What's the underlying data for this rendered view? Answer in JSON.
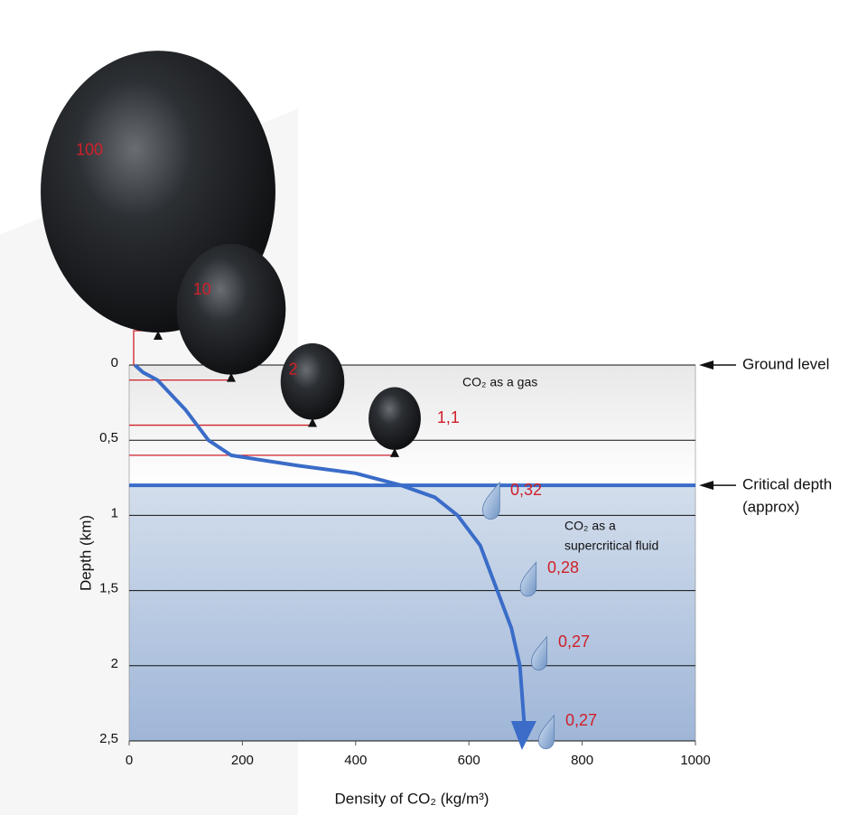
{
  "chart_data": {
    "type": "line",
    "x_label": "Density of CO₂ (kg/m³)",
    "y_label": "Depth (km)",
    "xlim": [
      0,
      1000
    ],
    "ylim": [
      0,
      2.5
    ],
    "xticks": [
      0,
      200,
      400,
      600,
      800,
      1000
    ],
    "yticks": [
      0,
      {
        "value": 0.5,
        "label": "0,5"
      },
      1,
      {
        "value": 1.5,
        "label": "1,5"
      },
      2,
      {
        "value": 2.5,
        "label": "2,5"
      }
    ],
    "grid": true,
    "x": [
      10,
      25,
      50,
      100,
      140,
      180,
      230,
      300,
      400,
      480,
      540,
      580,
      620,
      650,
      675,
      690,
      700
    ],
    "series": [
      {
        "color": "#3a6cc8",
        "values": [
          0,
          0.05,
          0.1,
          0.3,
          0.5,
          0.6,
          0.63,
          0.67,
          0.72,
          0.8,
          0.88,
          1.0,
          1.2,
          1.5,
          1.75,
          2.0,
          2.5
        ]
      }
    ],
    "critical_depth": 0.8,
    "balloons": {
      "values": [
        100,
        10,
        2,
        1.1
      ],
      "value_labels": [
        "100",
        "10",
        "2",
        "1,1"
      ],
      "depths": [
        0,
        0.1,
        0.4,
        0.6
      ]
    },
    "droplets": {
      "values": [
        0.32,
        0.28,
        0.27,
        0.27
      ],
      "value_labels": [
        "0,32",
        "0,28",
        "0,27",
        "0,27"
      ]
    },
    "annotations": {
      "gas": "CO₂ as a gas",
      "fluid": [
        "CO₂ as a",
        "supercritical fluid"
      ],
      "ground": "Ground level",
      "critical": [
        "Critical depth",
        "(approx)"
      ]
    }
  }
}
